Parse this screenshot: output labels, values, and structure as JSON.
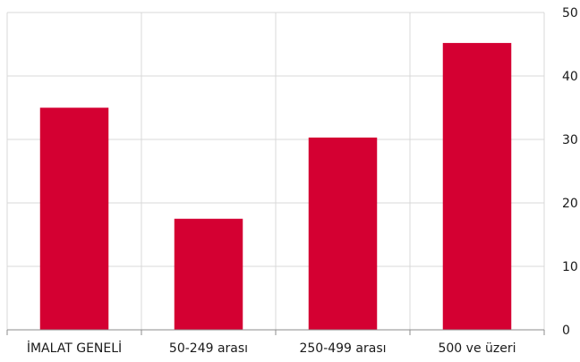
{
  "chart_data": {
    "type": "bar",
    "categories": [
      "İMALAT GENELİ",
      "50-249 arası",
      "250-499 arası",
      "500 ve üzeri"
    ],
    "values": [
      35,
      17.5,
      30.3,
      45.2
    ],
    "ylim": [
      0,
      50
    ],
    "yticks": [
      "0",
      "10",
      "20",
      "30",
      "40",
      "50"
    ],
    "y_axis_side": "right",
    "grid": true,
    "bar_color": "#d40032",
    "title": "",
    "xlabel": "",
    "ylabel": ""
  }
}
